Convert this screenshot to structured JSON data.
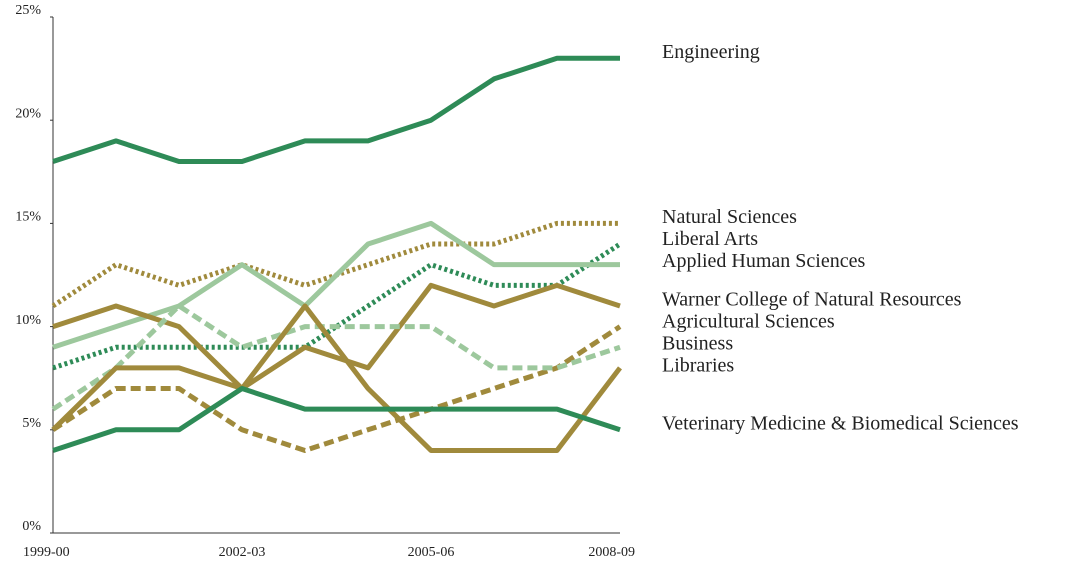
{
  "chart_data": {
    "type": "line",
    "categories": [
      "1999-00",
      null,
      null,
      "2002-03",
      null,
      null,
      "2005-06",
      null,
      null,
      "2008-09"
    ],
    "ylim": [
      0,
      25
    ],
    "yticks": [
      {
        "value": 0,
        "label": "0%"
      },
      {
        "value": 5,
        "label": "5%"
      },
      {
        "value": 10,
        "label": "10%"
      },
      {
        "value": 15,
        "label": "15%"
      },
      {
        "value": 20,
        "label": "20%"
      },
      {
        "value": 25,
        "label": "25%"
      }
    ],
    "grid": false,
    "series": [
      {
        "name": "Engineering",
        "color": "#2e8b57",
        "dash": "solid",
        "values": [
          18,
          19,
          18,
          18,
          19,
          19,
          20,
          22,
          23,
          23
        ]
      },
      {
        "name": "Natural Sciences",
        "color": "#a08a3c",
        "dash": "dotted",
        "values": [
          11,
          13,
          12,
          13,
          12,
          13,
          14,
          14,
          15,
          15
        ]
      },
      {
        "name": "Liberal Arts",
        "color": "#2e8b57",
        "dash": "dotted",
        "values": [
          8,
          9,
          9,
          9,
          9,
          11,
          13,
          12,
          12,
          14
        ]
      },
      {
        "name": "Applied Human Sciences",
        "color": "#9dc89d",
        "dash": "solid",
        "values": [
          9,
          10,
          11,
          13,
          11,
          14,
          15,
          13,
          13,
          13
        ]
      },
      {
        "name": "Warner College of Natural Resources",
        "color": "#a08a3c",
        "dash": "solid",
        "values": [
          10,
          11,
          10,
          7,
          9,
          8,
          12,
          11,
          12,
          11
        ]
      },
      {
        "name": "Agricultural Sciences",
        "color": "#a08a3c",
        "dash": "dashed",
        "values": [
          5,
          7,
          7,
          5,
          4,
          5,
          6,
          7,
          8,
          10
        ]
      },
      {
        "name": "Business",
        "color": "#9dc89d",
        "dash": "dashed",
        "values": [
          6,
          8,
          11,
          9,
          10,
          10,
          10,
          8,
          8,
          9
        ]
      },
      {
        "name": "Libraries",
        "color": "#a08a3c",
        "dash": "solid",
        "values": [
          5,
          8,
          8,
          7,
          11,
          7,
          4,
          4,
          4,
          8
        ]
      },
      {
        "name": "Veterinary Medicine & Biomedical Sciences",
        "color": "#2e8b57",
        "dash": "solid",
        "values": [
          4,
          5,
          5,
          7,
          6,
          6,
          6,
          6,
          6,
          5
        ]
      }
    ]
  }
}
